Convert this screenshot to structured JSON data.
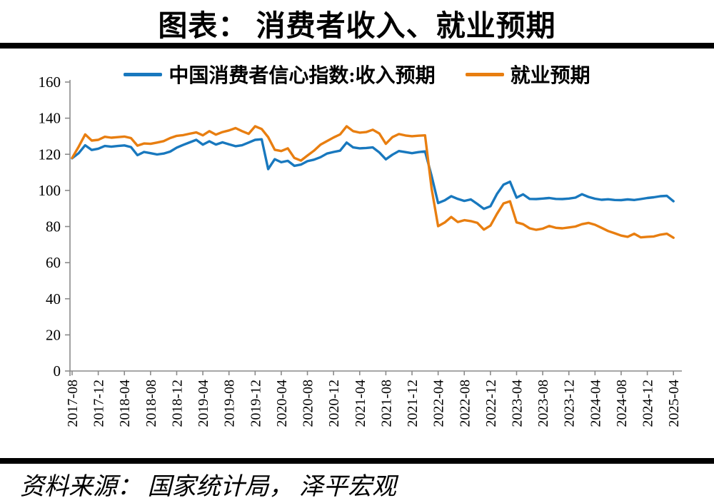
{
  "title": "图表： 消费者收入、就业预期",
  "source": "资料来源： 国家统计局， 泽平宏观",
  "colors": {
    "income": "#1878be",
    "employment": "#e87e10",
    "axis": "#8a8a8a",
    "rule": "#000000"
  },
  "chart_data": {
    "type": "line",
    "title": "图表： 消费者收入、就业预期",
    "xlabel": "",
    "ylabel": "",
    "ylim": [
      0,
      160
    ],
    "y_ticks": [
      0,
      20,
      40,
      60,
      80,
      100,
      120,
      140,
      160
    ],
    "grid": false,
    "legend_position": "top-center",
    "x_monthly_start": "2017-08",
    "x_monthly_end": "2025-04",
    "x_tick_labels": [
      "2017-08",
      "2017-12",
      "2018-04",
      "2018-08",
      "2018-12",
      "2019-04",
      "2019-08",
      "2019-12",
      "2020-04",
      "2020-08",
      "2020-12",
      "2021-04",
      "2021-08",
      "2021-12",
      "2022-04",
      "2022-08",
      "2022-12",
      "2023-04",
      "2023-08",
      "2023-12",
      "2024-04",
      "2024-08",
      "2024-12",
      "2025-04"
    ],
    "x_tick_step_months": 4,
    "series": [
      {
        "name": "中国消费者信心指数:收入预期",
        "color": "#1878be",
        "values": [
          117.8,
          120.6,
          125.0,
          122.4,
          123.1,
          124.6,
          124.2,
          124.6,
          124.9,
          124.0,
          119.5,
          121.3,
          120.6,
          119.9,
          120.4,
          121.5,
          123.7,
          125.2,
          126.6,
          128.0,
          125.3,
          127.2,
          125.4,
          126.6,
          125.5,
          124.5,
          125.0,
          126.5,
          128.0,
          128.3,
          111.8,
          117.3,
          115.6,
          116.4,
          113.6,
          114.3,
          116.2,
          117.0,
          118.4,
          120.4,
          121.3,
          122.0,
          126.5,
          123.8,
          123.3,
          123.5,
          123.8,
          121.0,
          117.2,
          119.8,
          121.8,
          121.2,
          120.6,
          121.2,
          121.6,
          108.0,
          93.0,
          94.5,
          96.8,
          95.3,
          94.2,
          95.0,
          92.5,
          89.8,
          91.2,
          98.0,
          103.2,
          104.8,
          96.0,
          97.8,
          95.3,
          95.2,
          95.5,
          95.8,
          95.3,
          95.2,
          95.5,
          96.0,
          97.9,
          96.4,
          95.4,
          94.8,
          95.1,
          94.7,
          94.6,
          95.0,
          94.7,
          95.2,
          95.8,
          96.2,
          96.8,
          97.0,
          94.0
        ]
      },
      {
        "name": "就业预期",
        "color": "#e87e10",
        "values": [
          118.0,
          124.2,
          131.0,
          127.6,
          128.0,
          129.7,
          129.2,
          129.5,
          129.8,
          129.0,
          124.8,
          126.0,
          125.8,
          126.5,
          127.3,
          129.0,
          130.2,
          130.6,
          131.4,
          132.1,
          130.5,
          132.8,
          130.9,
          132.3,
          133.2,
          134.5,
          132.8,
          131.3,
          135.5,
          134.0,
          129.5,
          122.5,
          121.8,
          123.3,
          118.0,
          116.5,
          119.3,
          122.0,
          125.3,
          127.3,
          129.3,
          131.0,
          135.5,
          132.8,
          132.0,
          132.3,
          133.6,
          131.5,
          125.8,
          129.5,
          131.2,
          130.4,
          130.0,
          130.3,
          130.5,
          101.0,
          80.2,
          82.2,
          85.3,
          82.5,
          83.5,
          83.0,
          82.0,
          78.3,
          80.5,
          87.0,
          92.8,
          94.0,
          82.3,
          81.3,
          79.0,
          78.2,
          78.8,
          80.3,
          79.3,
          79.0,
          79.5,
          80.0,
          81.3,
          82.0,
          81.0,
          79.3,
          77.5,
          76.3,
          75.0,
          74.3,
          76.0,
          74.0,
          74.3,
          74.5,
          75.5,
          76.0,
          73.8
        ]
      }
    ]
  }
}
